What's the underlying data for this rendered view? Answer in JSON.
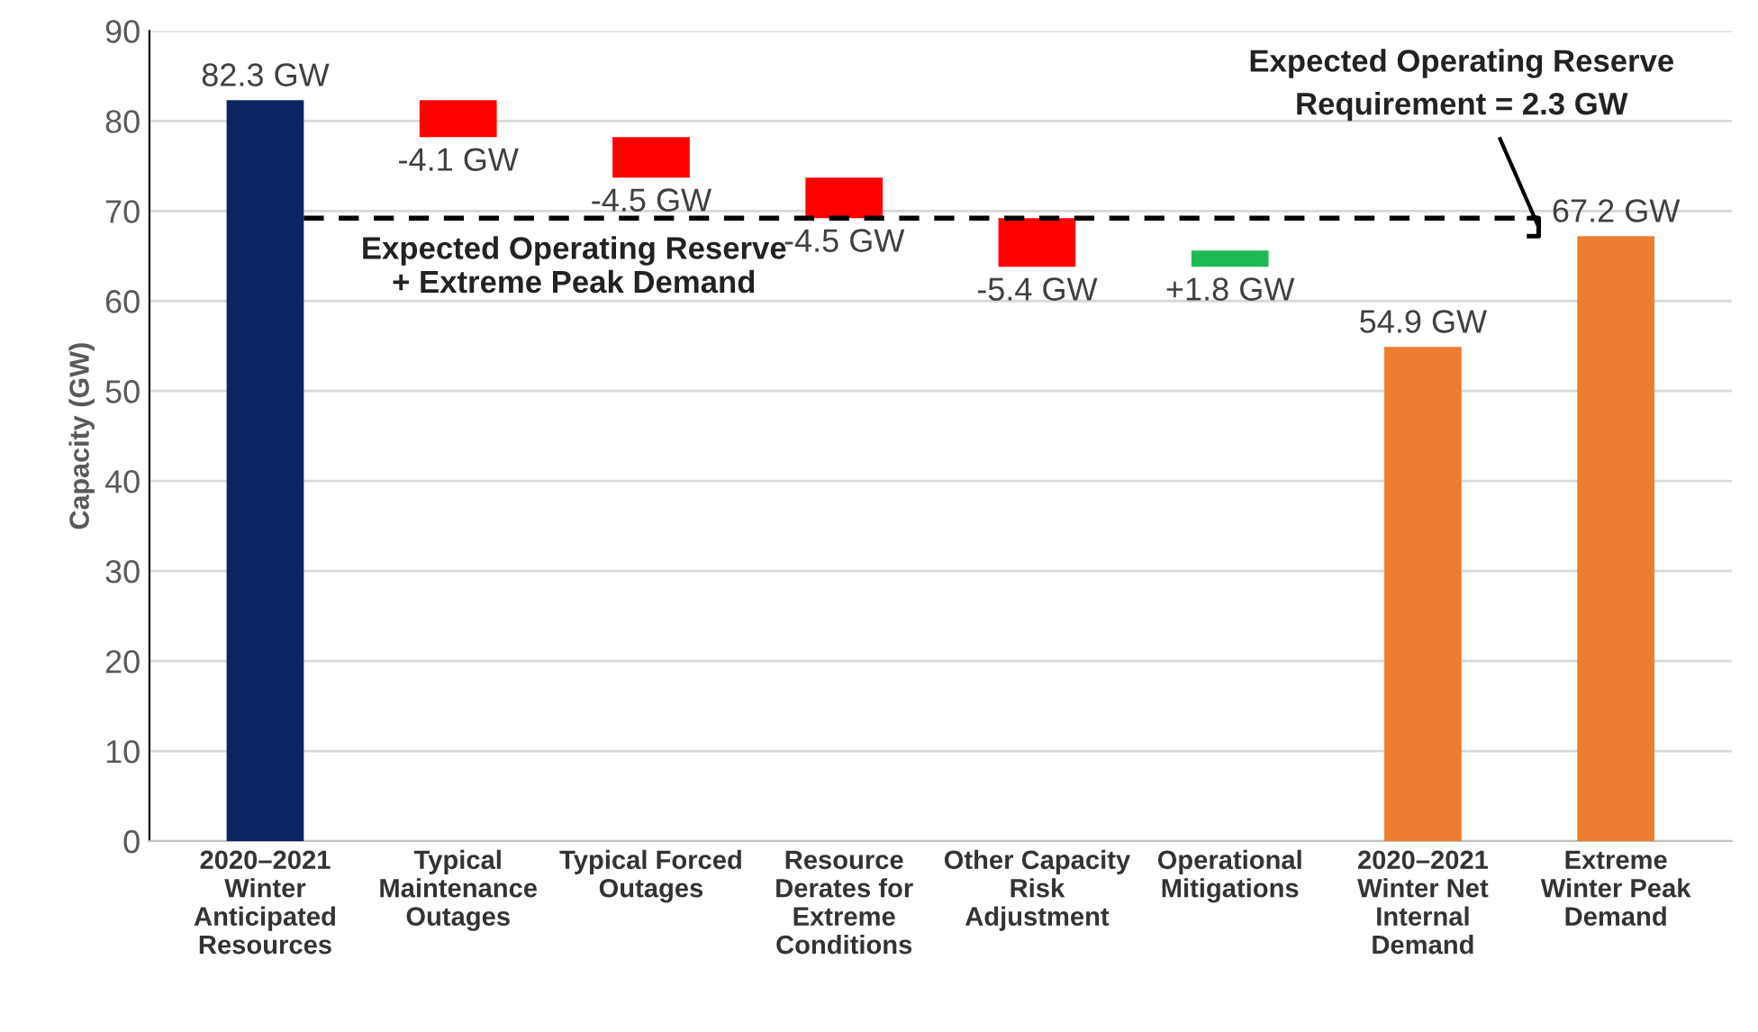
{
  "chart_data": {
    "type": "bar",
    "ylabel": "Capacity (GW)",
    "categories": [
      "2020–2021\nWinter\nAnticipated\nResources",
      "Typical\nMaintenance\nOutages",
      "Typical Forced\nOutages",
      "Resource\nDerates for\nExtreme\nConditions",
      "Other Capacity\nRisk\nAdjustment",
      "Operational\nMitigations",
      "2020–2021\nWinter Net\nInternal\nDemand",
      "Extreme\nWinter Peak\nDemand"
    ],
    "values": [
      82.3,
      -4.1,
      -4.5,
      -4.5,
      -5.4,
      1.8,
      54.9,
      67.2
    ],
    "base": [
      0,
      82.3,
      78.2,
      73.7,
      69.2,
      63.8,
      0,
      0
    ],
    "colors": [
      "#0c2461",
      "#ff0000",
      "#ff0000",
      "#ff0000",
      "#ff0000",
      "#1db954",
      "#ed7d31",
      "#ed7d31"
    ],
    "value_labels": [
      "82.3 GW",
      "-4.1 GW",
      "-4.5 GW",
      "-4.5 GW",
      "-5.4 GW",
      "+1.8 GW",
      "54.9 GW",
      "67.2 GW"
    ],
    "ylim": [
      0,
      90
    ],
    "yticks": [
      0,
      10,
      20,
      30,
      40,
      50,
      60,
      70,
      80,
      90
    ],
    "grid": "y",
    "ref_lines": [
      {
        "axis": "y",
        "value": 69.2,
        "label": "Expected Operating Reserve\n+ Extreme Peak Demand",
        "color": "#000000",
        "line_style": "dashed"
      }
    ],
    "annotations": [
      "Expected Operating Reserve\nRequirement = 2.3 GW"
    ]
  }
}
